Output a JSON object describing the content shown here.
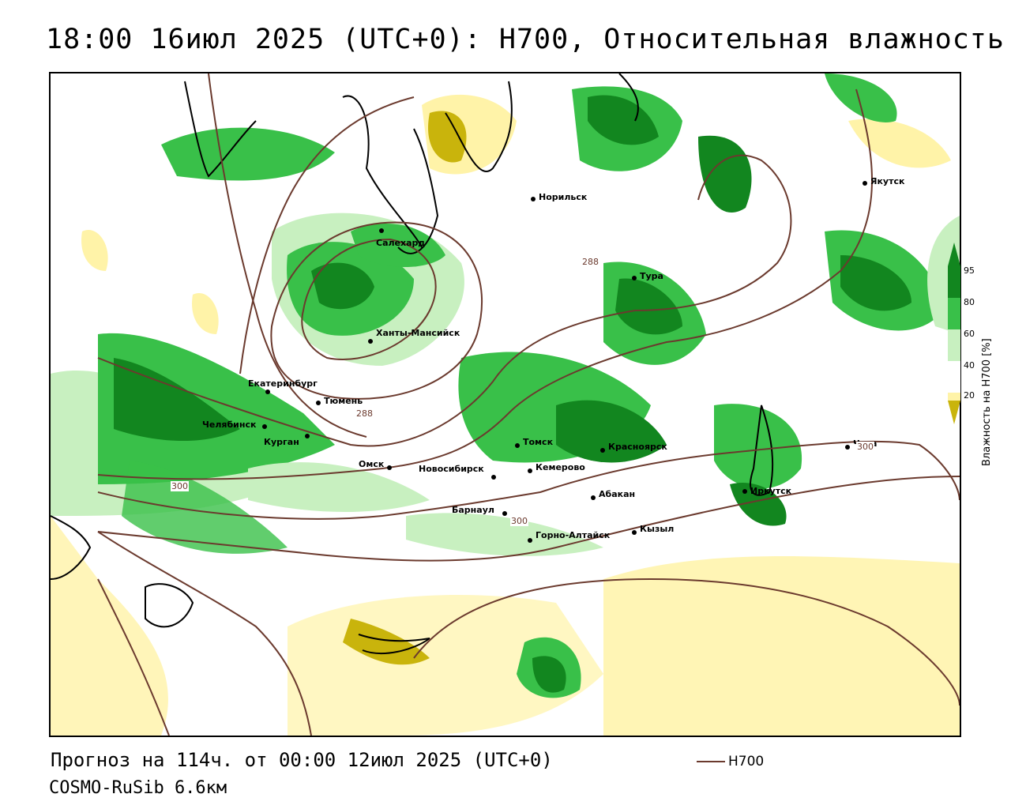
{
  "header": {
    "title": "18:00 16июл 2025 (UTC+0): H700, Относительная влажность"
  },
  "footer": {
    "forecast_line": "Прогноз на 114ч. от 00:00 12июл 2025 (UTC+0)",
    "model_line": "COSMO-RuSib 6.6км",
    "legend_label": "H700"
  },
  "colorbar": {
    "label": "Влажность на H700 [%]",
    "ticks": [
      "95",
      "80",
      "60",
      "40",
      "20"
    ],
    "colors": {
      "very_dry": "#c9b40c",
      "dry": "#fff3a8",
      "neutral": "#ffffff",
      "moist_light": "#c8f0c0",
      "moist": "#39c049",
      "saturated": "#12861f"
    }
  },
  "map": {
    "contour_color": "#6b3a2e",
    "isohypse_labels": [
      "288",
      "288",
      "300",
      "300",
      "300"
    ],
    "cities": [
      {
        "name": "Норильск"
      },
      {
        "name": "Якутск"
      },
      {
        "name": "Салехард"
      },
      {
        "name": "Тура"
      },
      {
        "name": "Ханты-Мансийск"
      },
      {
        "name": "Екатеринбург"
      },
      {
        "name": "Тюмень"
      },
      {
        "name": "Челябинск"
      },
      {
        "name": "Курган"
      },
      {
        "name": "Омск"
      },
      {
        "name": "Новосибирск"
      },
      {
        "name": "Томск"
      },
      {
        "name": "Кемерово"
      },
      {
        "name": "Красноярск"
      },
      {
        "name": "Абакан"
      },
      {
        "name": "Барнаул"
      },
      {
        "name": "Горно-Алтайск"
      },
      {
        "name": "Кызыл"
      },
      {
        "name": "Иркутск"
      },
      {
        "name": "Чита"
      }
    ]
  }
}
